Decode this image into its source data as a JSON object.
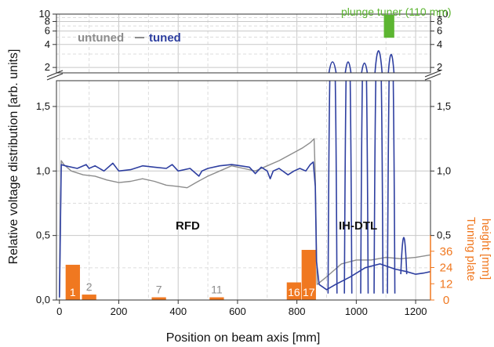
{
  "chart_data": {
    "type": "line",
    "xlabel": "Position on beam axis [mm]",
    "ylabel": "Relative voltage distribution [arb. units]",
    "y2label_line1": "Tuning plate",
    "y2label_line2": "height [mm]",
    "xlim": [
      -10,
      1250
    ],
    "x_ticks": [
      0,
      200,
      400,
      600,
      800,
      1000,
      1200
    ],
    "y_lower": {
      "range": [
        0,
        1.7
      ],
      "ticks": [
        0,
        0.5,
        1.0,
        1.5
      ],
      "tick_labels": [
        "0,0",
        "0,5",
        "1,0",
        "1,5"
      ]
    },
    "y_upper": {
      "scale": "log",
      "range": [
        1.7,
        10
      ],
      "ticks": [
        2,
        4,
        6,
        8,
        10
      ],
      "tick_labels": [
        "2",
        "4",
        "6",
        "8",
        "10"
      ]
    },
    "y2": {
      "range": [
        0,
        48
      ],
      "ticks": [
        0,
        12,
        24,
        36
      ],
      "tick_labels": [
        "0",
        "12",
        "24",
        "36"
      ]
    },
    "legend": [
      {
        "label": "untuned",
        "color": "#8c8c8c"
      },
      {
        "label": "tuned",
        "color": "#2e3fa0"
      }
    ],
    "annotations": {
      "rfd": "RFD",
      "ihdtl": "IH-DTL",
      "plunger": "plunge tuner (110 mm)"
    },
    "plunger_bar": {
      "x_start": 1093,
      "x_end": 1128,
      "color": "#5cb531"
    },
    "tuning_plates": {
      "color": "#f07820",
      "bars": [
        {
          "label": "1",
          "x": 45,
          "height": 26
        },
        {
          "label": "2",
          "x": 100,
          "height": 4
        },
        {
          "label": "7",
          "x": 335,
          "height": 2
        },
        {
          "label": "11",
          "x": 530,
          "height": 2
        },
        {
          "label": "16",
          "x": 790,
          "height": 13
        },
        {
          "label": "17",
          "x": 840,
          "height": 37
        }
      ]
    },
    "series": [
      {
        "name": "untuned",
        "color": "#8c8c8c",
        "points": [
          [
            0,
            0.02
          ],
          [
            3,
            0.5
          ],
          [
            6,
            1.08
          ],
          [
            15,
            1.05
          ],
          [
            40,
            1.0
          ],
          [
            80,
            0.97
          ],
          [
            120,
            0.96
          ],
          [
            160,
            0.93
          ],
          [
            200,
            0.91
          ],
          [
            240,
            0.92
          ],
          [
            280,
            0.94
          ],
          [
            320,
            0.92
          ],
          [
            360,
            0.89
          ],
          [
            400,
            0.88
          ],
          [
            430,
            0.87
          ],
          [
            460,
            0.91
          ],
          [
            500,
            0.96
          ],
          [
            540,
            1.0
          ],
          [
            580,
            1.04
          ],
          [
            620,
            1.02
          ],
          [
            660,
            1.0
          ],
          [
            700,
            1.04
          ],
          [
            740,
            1.08
          ],
          [
            780,
            1.13
          ],
          [
            820,
            1.18
          ],
          [
            845,
            1.22
          ],
          [
            858,
            1.25
          ],
          [
            862,
            0.95
          ],
          [
            868,
            0.12
          ],
          [
            900,
            0.18
          ],
          [
            950,
            0.28
          ],
          [
            1000,
            0.31
          ],
          [
            1050,
            0.31
          ],
          [
            1100,
            0.33
          ],
          [
            1150,
            0.32
          ],
          [
            1200,
            0.33
          ],
          [
            1250,
            0.35
          ]
        ]
      },
      {
        "name": "tuned",
        "color": "#2e3fa0",
        "points": [
          [
            0,
            0.02
          ],
          [
            3,
            0.5
          ],
          [
            6,
            1.05
          ],
          [
            20,
            1.04
          ],
          [
            60,
            1.02
          ],
          [
            90,
            1.05
          ],
          [
            100,
            1.02
          ],
          [
            120,
            1.04
          ],
          [
            150,
            1.0
          ],
          [
            180,
            1.06
          ],
          [
            200,
            1.0
          ],
          [
            240,
            1.01
          ],
          [
            280,
            1.04
          ],
          [
            320,
            1.03
          ],
          [
            360,
            1.02
          ],
          [
            380,
            1.05
          ],
          [
            400,
            1.0
          ],
          [
            440,
            1.02
          ],
          [
            470,
            0.96
          ],
          [
            480,
            1.0
          ],
          [
            500,
            1.02
          ],
          [
            540,
            1.04
          ],
          [
            580,
            1.05
          ],
          [
            610,
            1.04
          ],
          [
            640,
            1.03
          ],
          [
            660,
            0.98
          ],
          [
            680,
            1.03
          ],
          [
            700,
            1.0
          ],
          [
            710,
            0.94
          ],
          [
            720,
            1.0
          ],
          [
            740,
            1.02
          ],
          [
            770,
            0.97
          ],
          [
            790,
            1.0
          ],
          [
            810,
            1.02
          ],
          [
            830,
            1.0
          ],
          [
            845,
            1.05
          ],
          [
            855,
            1.07
          ],
          [
            862,
            0.88
          ],
          [
            866,
            0.3
          ],
          [
            875,
            0.12
          ],
          [
            900,
            0.08
          ],
          [
            930,
            0.12
          ],
          [
            980,
            0.18
          ],
          [
            1030,
            0.25
          ],
          [
            1080,
            0.28
          ],
          [
            1130,
            0.24
          ],
          [
            1170,
            0.22
          ],
          [
            1200,
            0.2
          ],
          [
            1230,
            0.21
          ],
          [
            1250,
            0.22
          ]
        ]
      }
    ]
  }
}
